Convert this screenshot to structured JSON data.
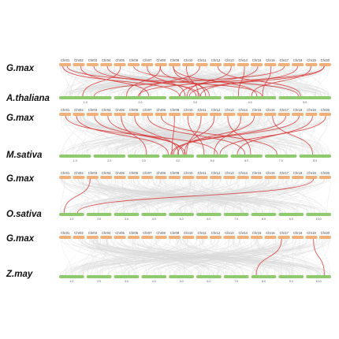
{
  "colors": {
    "top_chromosome": "#f0b07a",
    "bottom_chromosome": "#8fca6e",
    "synteny_background": "#d9d9d9",
    "synteny_highlight": "#d83a3a"
  },
  "panels": [
    {
      "top_species": "G.max",
      "bottom_species": "A.thaliana",
      "top_chromosomes": [
        "Chr01",
        "Chr02",
        "Chr03",
        "Chr04",
        "Chr05",
        "Chr06",
        "Chr07",
        "Chr08",
        "Chr09",
        "Chr10",
        "Chr11",
        "Chr12",
        "Chr13",
        "Chr14",
        "Chr15",
        "Chr16",
        "Chr17",
        "Chr18",
        "Chr19",
        "Chr20"
      ],
      "bottom_chromosomes": [
        "1.0",
        "2.0",
        "3.0",
        "4.0",
        "5.0"
      ],
      "highlight_links": [
        [
          1,
          3
        ],
        [
          1,
          4
        ],
        [
          2,
          2
        ],
        [
          3,
          3
        ],
        [
          4,
          3
        ],
        [
          5,
          1
        ],
        [
          6,
          5
        ],
        [
          7,
          3
        ],
        [
          8,
          2
        ],
        [
          8,
          3
        ],
        [
          9,
          3
        ],
        [
          9,
          4
        ],
        [
          10,
          3
        ],
        [
          11,
          2
        ],
        [
          12,
          5
        ],
        [
          13,
          3
        ],
        [
          14,
          4
        ],
        [
          15,
          3
        ],
        [
          16,
          4
        ],
        [
          17,
          1
        ],
        [
          18,
          3
        ],
        [
          19,
          4
        ],
        [
          20,
          2
        ],
        [
          20,
          3
        ]
      ]
    },
    {
      "top_species": "G.max",
      "bottom_species": "M.sativa",
      "top_chromosomes": [
        "Chr01",
        "Chr02",
        "Chr03",
        "Chr04",
        "Chr05",
        "Chr06",
        "Chr07",
        "Chr08",
        "Chr09",
        "Chr10",
        "Chr11",
        "Chr12",
        "Chr13",
        "Chr14",
        "Chr15",
        "Chr16",
        "Chr17",
        "Chr18",
        "Chr19",
        "Chr20"
      ],
      "bottom_chromosomes": [
        "1.0",
        "2.0",
        "3.0",
        "4.0",
        "5.0",
        "6.0",
        "7.0",
        "8.0"
      ],
      "highlight_links": [
        [
          2,
          4
        ],
        [
          3,
          4
        ],
        [
          4,
          4
        ],
        [
          5,
          3
        ],
        [
          6,
          4
        ],
        [
          7,
          6
        ],
        [
          8,
          7
        ],
        [
          9,
          4
        ],
        [
          10,
          5
        ],
        [
          11,
          4
        ],
        [
          12,
          4
        ],
        [
          13,
          6
        ],
        [
          14,
          5
        ],
        [
          15,
          4
        ],
        [
          16,
          8
        ],
        [
          17,
          4
        ],
        [
          18,
          4
        ],
        [
          19,
          6
        ],
        [
          20,
          5
        ],
        [
          1,
          5
        ]
      ]
    },
    {
      "top_species": "G.max",
      "bottom_species": "O.sativa",
      "top_chromosomes": [
        "Chr01",
        "Chr02",
        "Chr03",
        "Chr04",
        "Chr05",
        "Chr06",
        "Chr07",
        "Chr08",
        "Chr09",
        "Chr10",
        "Chr11",
        "Chr12",
        "Chr13",
        "Chr14",
        "Chr15",
        "Chr16",
        "Chr17",
        "Chr18",
        "Chr19",
        "Chr20"
      ],
      "bottom_chromosomes": [
        "1.0",
        "2.0",
        "3.0",
        "4.0",
        "5.0",
        "6.0",
        "7.0",
        "8.0",
        "9.0",
        "10.0"
      ],
      "highlight_links": [
        [
          3,
          1
        ],
        [
          19,
          1
        ]
      ]
    },
    {
      "top_species": "G.max",
      "bottom_species": "Z.may",
      "top_chromosomes": [
        "Chr01",
        "Chr02",
        "Chr03",
        "Chr04",
        "Chr05",
        "Chr06",
        "Chr07",
        "Chr08",
        "Chr09",
        "Chr10",
        "Chr11",
        "Chr12",
        "Chr13",
        "Chr14",
        "Chr15",
        "Chr16",
        "Chr17",
        "Chr18",
        "Chr19",
        "Chr20"
      ],
      "bottom_chromosomes": [
        "1.0",
        "2.0",
        "3.0",
        "4.0",
        "5.0",
        "6.0",
        "7.0",
        "8.0",
        "9.0",
        "10.0"
      ],
      "highlight_links": [
        [
          17,
          8
        ],
        [
          19,
          10
        ]
      ]
    }
  ]
}
